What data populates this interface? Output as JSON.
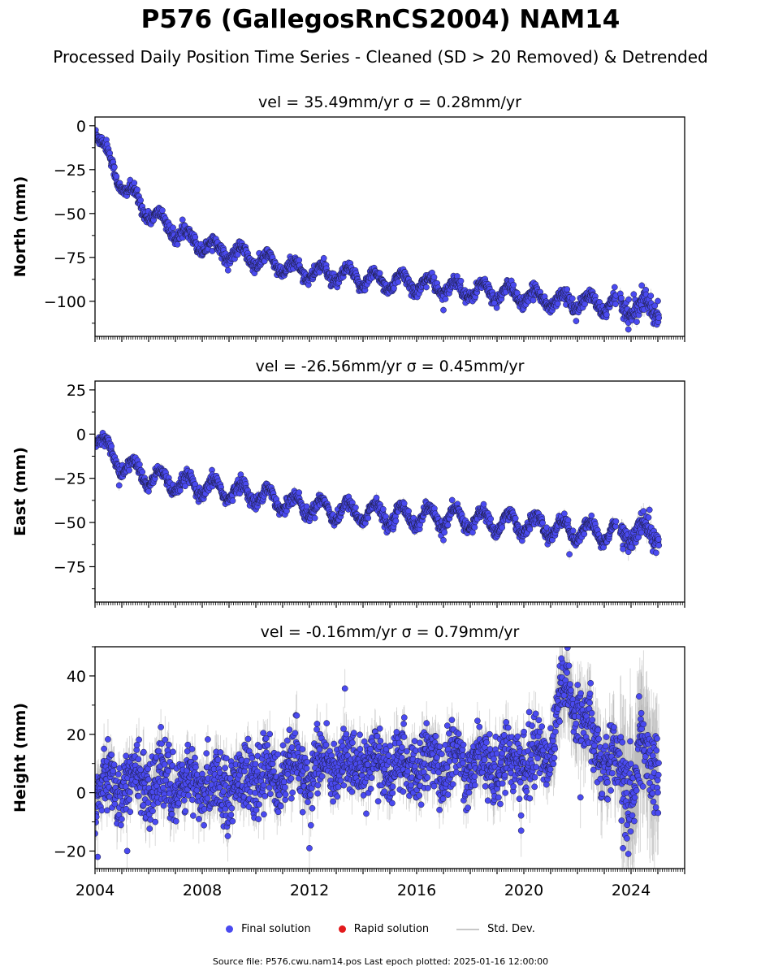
{
  "header": {
    "title": "P576 (GallegosRnCS2004) NAM14",
    "subtitle": "Processed Daily Position Time Series - Cleaned (SD > 20 Removed) & Detrended"
  },
  "legend": {
    "final_label": "Final solution",
    "rapid_label": "Rapid solution",
    "std_label": "Std. Dev."
  },
  "footer": {
    "source": "Source file: P576.cwu.nam14.pos  Last epoch plotted: 2025-01-16 12:00:00"
  },
  "colors": {
    "final": "#4a4af0",
    "rapid": "#e31a1c",
    "std": "#b0b0b0",
    "marker_edge": "#1a1a3a"
  },
  "chart_data": [
    {
      "type": "scatter",
      "component": "North",
      "title": "vel = 35.49mm/yr   σ = 0.28mm/yr",
      "ylabel": "North (mm)",
      "xlim": [
        2004.0,
        2026.0
      ],
      "ylim": [
        -120,
        5
      ],
      "yticks": [
        0,
        -25,
        -50,
        -75,
        -100
      ],
      "ytick_labels": [
        "0",
        "−25",
        "−50",
        "−75",
        "−100"
      ],
      "xticks": [
        2004,
        2008,
        2012,
        2016,
        2020,
        2024
      ],
      "xtick_labels": [],
      "trend": {
        "x": [
          2004.0,
          2004.3,
          2004.6,
          2005.0,
          2005.5,
          2006.0,
          2006.5,
          2007.0,
          2007.5,
          2008.0,
          2008.5,
          2009.0,
          2009.5,
          2010.0,
          2010.5,
          2011.0,
          2011.5,
          2012.0,
          2012.5,
          2013.0,
          2013.5,
          2014.0,
          2014.5,
          2015.0,
          2015.5,
          2016.0,
          2016.5,
          2017.0,
          2017.5,
          2018.0,
          2018.5,
          2019.0,
          2019.5,
          2020.0,
          2020.5,
          2021.0,
          2021.5,
          2022.0,
          2022.5,
          2023.0,
          2023.5,
          2024.0,
          2024.5,
          2025.0
        ],
        "y": [
          0,
          -12,
          -22,
          -33,
          -42,
          -49,
          -55,
          -60,
          -64,
          -67,
          -70,
          -72,
          -74,
          -76,
          -78,
          -80,
          -82,
          -83,
          -84,
          -85,
          -86,
          -87,
          -88,
          -89,
          -89,
          -90,
          -91,
          -92,
          -93,
          -94,
          -94,
          -95,
          -96,
          -97,
          -98,
          -99,
          -100,
          -100,
          -101,
          -102,
          -102,
          -103,
          -103,
          -103
        ]
      },
      "seasonal_amplitude": 4.5,
      "noise": 1.8,
      "std_dev": 1.5,
      "outliers": [
        [
          2017.0,
          -105
        ],
        [
          2018.9,
          -101
        ],
        [
          2023.9,
          -116
        ],
        [
          2024.1,
          -96
        ],
        [
          2024.4,
          -91
        ]
      ],
      "data_end": 2025.04
    },
    {
      "type": "scatter",
      "component": "East",
      "title": "vel = -26.56mm/yr   σ = 0.45mm/yr",
      "ylabel": "East (mm)",
      "xlim": [
        2004.0,
        2026.0
      ],
      "ylim": [
        -95,
        30
      ],
      "yticks": [
        25,
        0,
        -25,
        -50,
        -75
      ],
      "ytick_labels": [
        "25",
        "0",
        "−25",
        "−50",
        "−75"
      ],
      "xticks": [
        2004,
        2008,
        2012,
        2016,
        2020,
        2024
      ],
      "xtick_labels": [],
      "trend": {
        "x": [
          2004.0,
          2004.3,
          2004.6,
          2005.0,
          2005.5,
          2006.0,
          2006.5,
          2007.0,
          2007.5,
          2008.0,
          2008.5,
          2009.0,
          2009.5,
          2010.0,
          2010.5,
          2011.0,
          2011.5,
          2012.0,
          2012.5,
          2013.0,
          2013.5,
          2014.0,
          2014.5,
          2015.0,
          2015.5,
          2016.0,
          2016.5,
          2017.0,
          2017.5,
          2018.0,
          2018.5,
          2019.0,
          2019.5,
          2020.0,
          2020.5,
          2021.0,
          2021.5,
          2022.0,
          2022.5,
          2023.0,
          2023.5,
          2024.0,
          2024.5,
          2025.0
        ],
        "y": [
          0,
          -6,
          -12,
          -17,
          -21,
          -24,
          -26,
          -28,
          -29,
          -30,
          -31,
          -32,
          -33,
          -34,
          -36,
          -38,
          -40,
          -41,
          -42,
          -43,
          -44,
          -44,
          -45,
          -46,
          -46,
          -47,
          -47,
          -47,
          -48,
          -48,
          -49,
          -50,
          -50,
          -51,
          -52,
          -53,
          -54,
          -55,
          -55,
          -56,
          -56,
          -56,
          -55,
          -55
        ]
      },
      "seasonal_amplitude": 5.5,
      "noise": 1.8,
      "std_dev": 2.0,
      "outliers": [
        [
          2004.9,
          -29
        ],
        [
          2017.0,
          -60
        ],
        [
          2021.7,
          -68
        ],
        [
          2023.7,
          -65
        ],
        [
          2024.0,
          -64
        ]
      ],
      "data_end": 2025.04
    },
    {
      "type": "scatter",
      "component": "Height",
      "title": "vel = -0.16mm/yr   σ = 0.79mm/yr",
      "ylabel": "Height (mm)",
      "xlim": [
        2004.0,
        2026.0
      ],
      "ylim": [
        -26,
        50
      ],
      "yticks": [
        40,
        20,
        0,
        -20
      ],
      "ytick_labels": [
        "40",
        "20",
        "0",
        "−20"
      ],
      "xticks": [
        2004,
        2008,
        2012,
        2016,
        2020,
        2024
      ],
      "xtick_labels": [
        "2004",
        "2008",
        "2012",
        "2016",
        "2020",
        "2024"
      ],
      "trend": {
        "x": [
          2004.0,
          2005.0,
          2006.0,
          2007.0,
          2008.0,
          2009.0,
          2010.0,
          2011.0,
          2012.0,
          2013.0,
          2014.0,
          2015.0,
          2016.0,
          2017.0,
          2018.0,
          2019.0,
          2020.0,
          2020.8,
          2021.2,
          2021.5,
          2022.0,
          2022.3,
          2022.6,
          2023.0,
          2023.4,
          2023.7,
          2024.0,
          2024.5,
          2025.0
        ],
        "y": [
          3,
          3,
          4,
          3,
          2,
          3,
          5,
          7,
          8,
          9,
          10,
          9,
          9,
          10,
          11,
          10,
          11,
          13,
          25,
          35,
          28,
          25,
          18,
          12,
          10,
          3,
          2,
          12,
          8
        ]
      },
      "seasonal_amplitude": 4.0,
      "noise": 5.5,
      "std_dev": 6.0,
      "outliers": [
        [
          2004.1,
          -22
        ],
        [
          2005.2,
          -20
        ],
        [
          2012.0,
          -19
        ],
        [
          2019.9,
          -13
        ],
        [
          2021.4,
          46
        ],
        [
          2023.9,
          -21
        ],
        [
          2024.3,
          33
        ],
        [
          2023.7,
          -19
        ]
      ],
      "data_end": 2025.04
    }
  ]
}
